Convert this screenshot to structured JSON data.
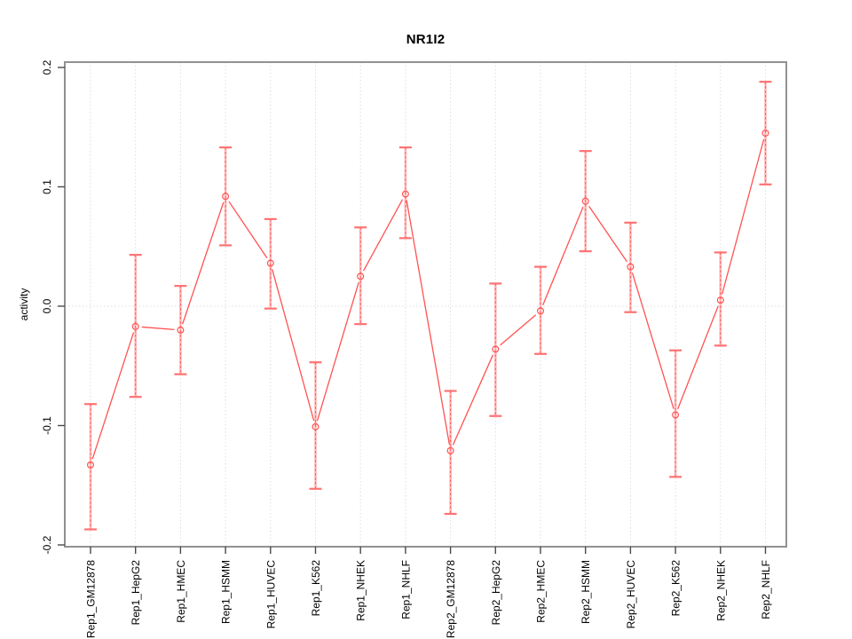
{
  "window": {
    "background": "#ffffff"
  },
  "title": "NR1I2",
  "chart_data": {
    "type": "line",
    "title": "NR1I2",
    "xlabel": "",
    "ylabel": "activity",
    "ylim": [
      -0.2,
      0.2
    ],
    "yticks": [
      0.2,
      0.1,
      0.0,
      -0.1,
      -0.2
    ],
    "ytick_labels": [
      "0.2",
      "0.1",
      "0.0",
      "-0.1",
      "-0.2"
    ],
    "xtick_label_rotation_deg": 90,
    "grid": {
      "vertical_category_lines": true,
      "horizontal_zero_line": true,
      "style": "dotted"
    },
    "legend_position": "none",
    "marker": "open-circle",
    "error_bars": true,
    "categories": [
      "Rep1_GM12878",
      "Rep1_HepG2",
      "Rep1_HMEC",
      "Rep1_HSMM",
      "Rep1_HUVEC",
      "Rep1_K562",
      "Rep1_NHEK",
      "Rep1_NHLF",
      "Rep2_GM12878",
      "Rep2_HepG2",
      "Rep2_HMEC",
      "Rep2_HSMM",
      "Rep2_HUVEC",
      "Rep2_K562",
      "Rep2_NHEK",
      "Rep2_NHLF"
    ],
    "series": [
      {
        "name": "activity",
        "values": [
          -0.133,
          -0.017,
          -0.02,
          0.092,
          0.036,
          -0.101,
          0.025,
          0.094,
          -0.121,
          -0.036,
          -0.004,
          0.088,
          0.033,
          -0.091,
          0.005,
          0.145
        ],
        "err_low": [
          -0.187,
          -0.076,
          -0.057,
          0.051,
          -0.002,
          -0.153,
          -0.015,
          0.057,
          -0.174,
          -0.092,
          -0.04,
          0.046,
          -0.005,
          -0.143,
          -0.033,
          0.102
        ],
        "err_high": [
          -0.082,
          0.043,
          0.017,
          0.133,
          0.073,
          -0.047,
          0.066,
          0.133,
          -0.071,
          0.019,
          0.033,
          0.13,
          0.07,
          -0.037,
          0.045,
          0.188
        ]
      }
    ],
    "colors": {
      "line": "#ff5252",
      "marker": "#ff5252",
      "error_bar_fill": "#ffb6b6",
      "error_bar_dash": "#ff5a5a",
      "error_cap": "#ff7272",
      "grid": "#dedede",
      "box": "#919191",
      "tick": "#4a4a4a",
      "text": "#000000"
    }
  }
}
